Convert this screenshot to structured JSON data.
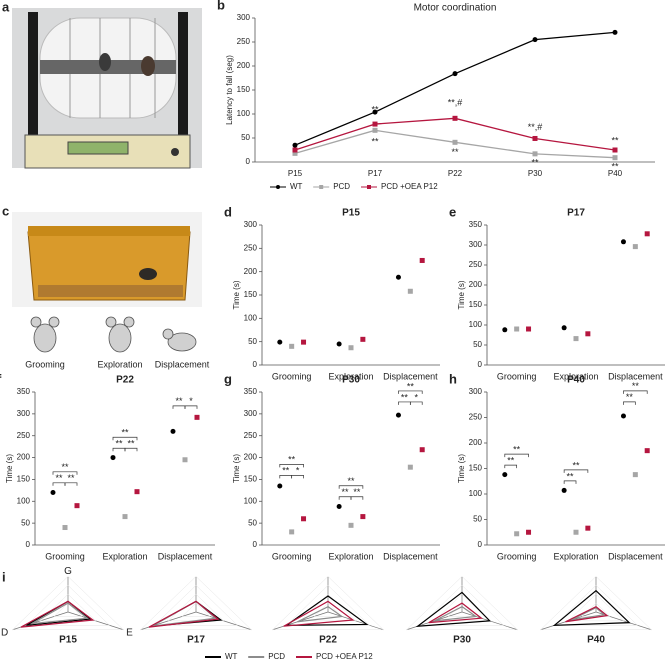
{
  "photo_panels": [
    "a",
    "c"
  ],
  "behavior_icons": [
    "Grooming",
    "Exploration",
    "Displacement"
  ],
  "chart_data": [
    {
      "type": "line",
      "panel": "b",
      "title": "Motor coordination",
      "y_label": "Latency to fall (seg)",
      "categories": [
        "P15",
        "P17",
        "P22",
        "P30",
        "P40"
      ],
      "ylim": [
        0,
        300
      ],
      "yticks": [
        0,
        50,
        100,
        150,
        200,
        250,
        300
      ],
      "series": [
        {
          "name": "WT",
          "color": "#000000",
          "marker": "circle",
          "values": [
            35,
            104,
            184,
            255,
            270
          ],
          "errors": [
            10,
            4,
            32,
            12,
            12
          ],
          "labels": [
            null,
            null,
            null,
            null,
            null
          ]
        },
        {
          "name": "PCD",
          "color": "#a6a6a6",
          "marker": "square",
          "values": [
            18,
            66,
            41,
            17,
            9
          ],
          "errors": [
            3,
            8,
            5,
            3,
            3
          ],
          "labels": [
            null,
            "**",
            "**",
            "**",
            "**"
          ]
        },
        {
          "name": "PCD +OEA P12",
          "color": "#b5163f",
          "marker": "square",
          "values": [
            25,
            79,
            91,
            49,
            25
          ],
          "errors": [
            5,
            15,
            17,
            8,
            4
          ],
          "labels": [
            null,
            "**",
            "**,#",
            "**,#",
            "**"
          ]
        }
      ]
    },
    {
      "type": "dot",
      "panel": "d",
      "title": "P15",
      "y_label": "Time (s)",
      "categories": [
        "Grooming",
        "Exploration",
        "Displacement"
      ],
      "ylim": [
        0,
        300
      ],
      "yticks": [
        0,
        50,
        100,
        150,
        200,
        250,
        300
      ],
      "series": [
        {
          "name": "WT",
          "color": "#000000",
          "marker": "circle",
          "values": [
            49,
            45,
            188
          ],
          "errors": [
            4,
            5,
            3
          ]
        },
        {
          "name": "PCD",
          "color": "#a6a6a6",
          "marker": "square",
          "values": [
            40,
            37,
            158
          ],
          "errors": [
            3,
            5,
            25
          ]
        },
        {
          "name": "PCD +OEA P12",
          "color": "#b5163f",
          "marker": "square",
          "values": [
            49,
            55,
            224
          ],
          "errors": [
            10,
            3,
            25
          ]
        }
      ],
      "brackets": []
    },
    {
      "type": "dot",
      "panel": "e",
      "title": "P17",
      "y_label": "Time (s)",
      "categories": [
        "Grooming",
        "Exploration",
        "Displacement"
      ],
      "ylim": [
        0,
        350
      ],
      "yticks": [
        0,
        50,
        100,
        150,
        200,
        250,
        300,
        350
      ],
      "series": [
        {
          "name": "WT",
          "color": "#000000",
          "marker": "circle",
          "values": [
            88,
            93,
            308
          ],
          "errors": [
            5,
            6,
            20
          ]
        },
        {
          "name": "PCD",
          "color": "#a6a6a6",
          "marker": "square",
          "values": [
            90,
            66,
            296
          ],
          "errors": [
            5,
            6,
            8
          ]
        },
        {
          "name": "PCD +OEA P12",
          "color": "#b5163f",
          "marker": "square",
          "values": [
            90,
            78,
            328
          ],
          "errors": [
            5,
            5,
            8
          ]
        }
      ],
      "brackets": []
    },
    {
      "type": "dot",
      "panel": "f",
      "title": "P22",
      "y_label": "Time (s)",
      "categories": [
        "Grooming",
        "Exploration",
        "Displacement"
      ],
      "ylim": [
        0,
        350
      ],
      "yticks": [
        0,
        50,
        100,
        150,
        200,
        250,
        300,
        350
      ],
      "series": [
        {
          "name": "WT",
          "color": "#000000",
          "marker": "circle",
          "values": [
            120,
            200,
            260
          ],
          "errors": [
            4,
            3,
            5
          ]
        },
        {
          "name": "PCD",
          "color": "#a6a6a6",
          "marker": "square",
          "values": [
            40,
            65,
            195
          ],
          "errors": [
            3,
            5,
            25
          ]
        },
        {
          "name": "PCD +OEA P12",
          "color": "#b5163f",
          "marker": "square",
          "values": [
            90,
            122,
            292
          ],
          "errors": [
            4,
            10,
            8
          ]
        }
      ],
      "brackets": [
        {
          "category": 0,
          "series": [
            0,
            1
          ],
          "label": "**"
        },
        {
          "category": 0,
          "series": [
            1,
            2
          ],
          "label": "**"
        },
        {
          "category": 0,
          "series": [
            0,
            2
          ],
          "label": "**"
        },
        {
          "category": 1,
          "series": [
            0,
            1
          ],
          "label": "**"
        },
        {
          "category": 1,
          "series": [
            1,
            2
          ],
          "label": "**"
        },
        {
          "category": 1,
          "series": [
            0,
            2
          ],
          "label": "**"
        },
        {
          "category": 2,
          "series": [
            0,
            1
          ],
          "label": "**"
        },
        {
          "category": 2,
          "series": [
            1,
            2
          ],
          "label": "*"
        }
      ]
    },
    {
      "type": "dot",
      "panel": "g",
      "title": "P30",
      "y_label": "Time (s)",
      "categories": [
        "Grooming",
        "Exploration",
        "Displacement"
      ],
      "ylim": [
        0,
        350
      ],
      "yticks": [
        0,
        50,
        100,
        150,
        200,
        250,
        300,
        350
      ],
      "series": [
        {
          "name": "WT",
          "color": "#000000",
          "marker": "circle",
          "values": [
            135,
            88,
            297
          ],
          "errors": [
            6,
            4,
            12
          ]
        },
        {
          "name": "PCD",
          "color": "#a6a6a6",
          "marker": "square",
          "values": [
            30,
            45,
            178
          ],
          "errors": [
            3,
            3,
            6
          ]
        },
        {
          "name": "PCD +OEA P12",
          "color": "#b5163f",
          "marker": "square",
          "values": [
            60,
            65,
            218
          ],
          "errors": [
            8,
            4,
            15
          ]
        }
      ],
      "brackets": [
        {
          "category": 0,
          "series": [
            0,
            1
          ],
          "label": "**"
        },
        {
          "category": 0,
          "series": [
            1,
            2
          ],
          "label": "*"
        },
        {
          "category": 0,
          "series": [
            0,
            2
          ],
          "label": "**"
        },
        {
          "category": 1,
          "series": [
            0,
            1
          ],
          "label": "**"
        },
        {
          "category": 1,
          "series": [
            1,
            2
          ],
          "label": "**"
        },
        {
          "category": 1,
          "series": [
            0,
            2
          ],
          "label": "**"
        },
        {
          "category": 2,
          "series": [
            0,
            1
          ],
          "label": "**"
        },
        {
          "category": 2,
          "series": [
            1,
            2
          ],
          "label": "*"
        },
        {
          "category": 2,
          "series": [
            0,
            2
          ],
          "label": "**"
        }
      ]
    },
    {
      "type": "dot",
      "panel": "h",
      "title": "P40",
      "y_label": "Time (s)",
      "categories": [
        "Grooming",
        "Exploration",
        "Displacement"
      ],
      "ylim": [
        0,
        300
      ],
      "yticks": [
        0,
        50,
        100,
        150,
        200,
        250,
        300
      ],
      "series": [
        {
          "name": "WT",
          "color": "#000000",
          "marker": "circle",
          "values": [
            138,
            107,
            253
          ],
          "errors": [
            3,
            3,
            12
          ]
        },
        {
          "name": "PCD",
          "color": "#a6a6a6",
          "marker": "square",
          "values": [
            22,
            25,
            138
          ],
          "errors": [
            2,
            3,
            18
          ]
        },
        {
          "name": "PCD +OEA P12",
          "color": "#b5163f",
          "marker": "square",
          "values": [
            25,
            33,
            185
          ],
          "errors": [
            3,
            3,
            10
          ]
        }
      ],
      "brackets": [
        {
          "category": 0,
          "series": [
            0,
            1
          ],
          "label": "**"
        },
        {
          "category": 0,
          "series": [
            0,
            2
          ],
          "label": "**"
        },
        {
          "category": 1,
          "series": [
            0,
            1
          ],
          "label": "**"
        },
        {
          "category": 1,
          "series": [
            0,
            2
          ],
          "label": "**"
        },
        {
          "category": 2,
          "series": [
            0,
            1
          ],
          "label": "**"
        },
        {
          "category": 2,
          "series": [
            0,
            2
          ],
          "label": "**"
        }
      ]
    },
    {
      "type": "radar",
      "panel": "i",
      "axes": [
        "G",
        "E",
        "D"
      ],
      "rlim": [
        0,
        1
      ],
      "categories": [
        "P15",
        "P17",
        "P22",
        "P30",
        "P40"
      ],
      "series": [
        {
          "name": "WT",
          "color": "#000000",
          "values": [
            [
              0.3,
              0.4,
              0.75
            ],
            [
              0.3,
              0.45,
              0.8
            ],
            [
              0.45,
              0.7,
              0.75
            ],
            [
              0.55,
              0.5,
              0.8
            ],
            [
              0.6,
              0.6,
              0.75
            ]
          ]
        },
        {
          "name": "PCD",
          "color": "#8c8c8c",
          "values": [
            [
              0.25,
              0.35,
              0.65
            ],
            [
              0.3,
              0.35,
              0.8
            ],
            [
              0.15,
              0.25,
              0.55
            ],
            [
              0.15,
              0.25,
              0.5
            ],
            [
              0.12,
              0.15,
              0.45
            ]
          ]
        },
        {
          "name": "PCD +OEA P12",
          "color": "#b5163f",
          "values": [
            [
              0.3,
              0.45,
              0.85
            ],
            [
              0.3,
              0.4,
              0.85
            ],
            [
              0.3,
              0.45,
              0.8
            ],
            [
              0.25,
              0.35,
              0.6
            ],
            [
              0.15,
              0.2,
              0.55
            ]
          ]
        }
      ]
    }
  ]
}
